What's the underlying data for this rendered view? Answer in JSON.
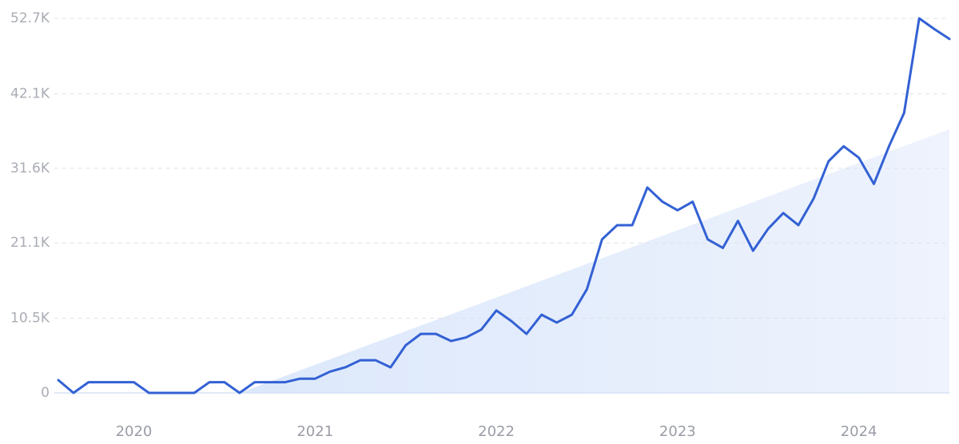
{
  "chart_data": {
    "type": "line",
    "categories": [
      null,
      null,
      null,
      null,
      null,
      "2020",
      null,
      null,
      null,
      null,
      null,
      null,
      null,
      null,
      null,
      null,
      null,
      "2021",
      null,
      null,
      null,
      null,
      null,
      null,
      null,
      null,
      null,
      null,
      null,
      "2022",
      null,
      null,
      null,
      null,
      null,
      null,
      null,
      null,
      null,
      null,
      null,
      "2023",
      null,
      null,
      null,
      null,
      null,
      null,
      null,
      null,
      null,
      null,
      null,
      "2024",
      null,
      null,
      null,
      null,
      null,
      null
    ],
    "series": [
      {
        "color": "#3361d4",
        "values": [
          1800,
          0,
          1500,
          1500,
          1500,
          1500,
          0,
          0,
          0,
          0,
          1500,
          1500,
          0,
          1500,
          1500,
          1500,
          2000,
          2000,
          3000,
          3600,
          4600,
          4600,
          3600,
          6700,
          8300,
          8300,
          7300,
          7800,
          8900,
          11600,
          10100,
          8300,
          11000,
          9900,
          11000,
          14600,
          21600,
          23600,
          23600,
          28900,
          26900,
          25700,
          26900,
          21600,
          20400,
          24200,
          20000,
          23100,
          25300,
          23600,
          27300,
          32600,
          34700,
          33100,
          29400,
          34700,
          39400,
          52700,
          51200,
          49800
        ]
      }
    ],
    "trend": {
      "at": [
        12,
        59
      ],
      "values": [
        0,
        37100
      ],
      "color": "#e4eefc"
    },
    "ylim": [
      0,
      52700
    ],
    "yticks": [
      0,
      {
        "value": 10500,
        "label": "10.5K"
      },
      {
        "value": 21100,
        "label": "21.1K"
      },
      {
        "value": 31600,
        "label": "31.6K"
      },
      {
        "value": 42100,
        "label": "42.1K"
      },
      {
        "value": 52700,
        "label": "52.7K"
      }
    ],
    "grid": true
  }
}
